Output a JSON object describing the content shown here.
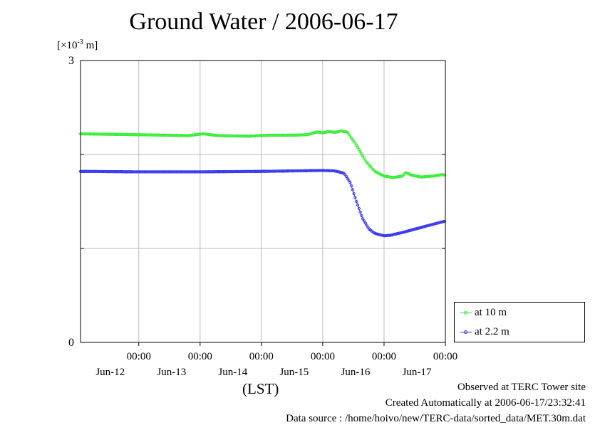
{
  "title": "Ground Water / 2006-06-17",
  "unit_prefix": "[×10",
  "unit_exp": "-3",
  "unit_suffix": " m]",
  "xlabel": "(LST)",
  "footer": {
    "observed": "Observed at TERC Tower site",
    "created": "Created Automatically at 2006-06-17/23:32:41",
    "source": "Data source : /home/hoivo/new/TERC-data/sorted_data/MET.30m.dat"
  },
  "chart_data": {
    "type": "line",
    "title": "Ground Water / 2006-06-17",
    "ylabel": "[×10^-3 m]",
    "xlabel": "(LST)",
    "ylim": [
      0,
      3
    ],
    "xlim": [
      -0.95,
      5.0
    ],
    "y_ticks": [
      "0",
      "3"
    ],
    "y_gridlines": [
      1,
      2
    ],
    "x_tick_time": "00:00",
    "x_ticks": [
      {
        "x": 0,
        "time": "00:00",
        "date": "Jun-12"
      },
      {
        "x": 1,
        "time": "00:00",
        "date": "Jun-13"
      },
      {
        "x": 2,
        "time": "00:00",
        "date": "Jun-14"
      },
      {
        "x": 3,
        "time": "00:00",
        "date": "Jun-15"
      },
      {
        "x": 4,
        "time": "00:00",
        "date": "Jun-16"
      },
      {
        "x": 5,
        "time": "00:00",
        "date": "Jun-17"
      }
    ],
    "x_units": "days from 2006-06-12 00:00 (ticks at 00:00 of each date)",
    "grid": true,
    "legend_position": "bottom-right",
    "series": [
      {
        "name": "at 10 m",
        "color": "#33ee33",
        "points": [
          [
            -0.95,
            2.22
          ],
          [
            -0.5,
            2.215
          ],
          [
            0.0,
            2.21
          ],
          [
            0.5,
            2.205
          ],
          [
            0.8,
            2.2
          ],
          [
            1.05,
            2.22
          ],
          [
            1.3,
            2.2
          ],
          [
            1.8,
            2.195
          ],
          [
            2.1,
            2.205
          ],
          [
            2.5,
            2.205
          ],
          [
            2.75,
            2.21
          ],
          [
            2.9,
            2.24
          ],
          [
            3.0,
            2.23
          ],
          [
            3.1,
            2.245
          ],
          [
            3.2,
            2.235
          ],
          [
            3.3,
            2.25
          ],
          [
            3.4,
            2.24
          ],
          [
            3.55,
            2.1
          ],
          [
            3.7,
            1.93
          ],
          [
            3.85,
            1.82
          ],
          [
            4.0,
            1.77
          ],
          [
            4.15,
            1.755
          ],
          [
            4.3,
            1.77
          ],
          [
            4.35,
            1.81
          ],
          [
            4.45,
            1.78
          ],
          [
            4.6,
            1.76
          ],
          [
            4.8,
            1.77
          ],
          [
            4.95,
            1.785
          ],
          [
            5.0,
            1.78
          ]
        ]
      },
      {
        "name": "at 2.2 m",
        "color": "#3333ee",
        "points": [
          [
            -0.95,
            1.82
          ],
          [
            0.0,
            1.815
          ],
          [
            1.0,
            1.815
          ],
          [
            2.0,
            1.82
          ],
          [
            2.5,
            1.825
          ],
          [
            3.0,
            1.83
          ],
          [
            3.2,
            1.825
          ],
          [
            3.35,
            1.8
          ],
          [
            3.45,
            1.7
          ],
          [
            3.55,
            1.5
          ],
          [
            3.65,
            1.32
          ],
          [
            3.75,
            1.21
          ],
          [
            3.85,
            1.16
          ],
          [
            4.0,
            1.135
          ],
          [
            4.1,
            1.14
          ],
          [
            4.3,
            1.17
          ],
          [
            4.5,
            1.205
          ],
          [
            4.7,
            1.24
          ],
          [
            4.9,
            1.275
          ],
          [
            5.0,
            1.29
          ]
        ]
      }
    ]
  }
}
